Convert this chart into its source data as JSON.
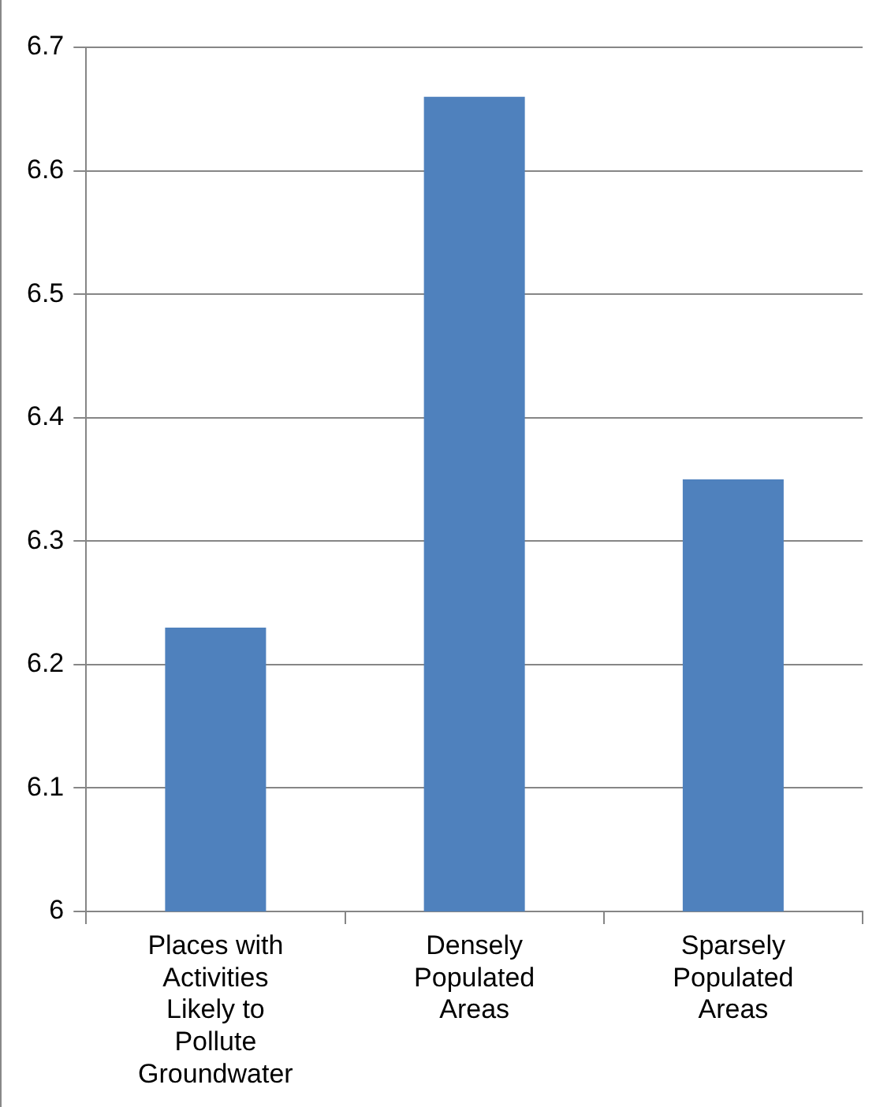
{
  "chart_data": {
    "type": "bar",
    "categories": [
      "Places with Activities Likely to Pollute Groundwater",
      "Densely Populated Areas",
      "Sparsely Populated Areas"
    ],
    "values": [
      6.23,
      6.66,
      6.35
    ],
    "color": "#4f81bd",
    "ylim": [
      6,
      6.7
    ],
    "yticks": [
      6,
      6.1,
      6.2,
      6.3,
      6.4,
      6.5,
      6.6,
      6.7
    ],
    "grid": "y",
    "legend": false
  }
}
